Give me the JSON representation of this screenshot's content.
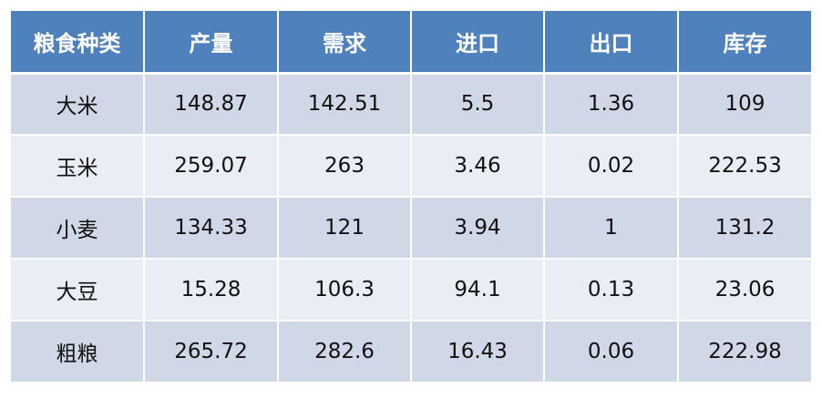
{
  "table": {
    "headers": [
      "粮食种类",
      "产量",
      "需求",
      "进口",
      "出口",
      "库存"
    ],
    "rows": [
      [
        "大米",
        "148.87",
        "142.51",
        "5.5",
        "1.36",
        "109"
      ],
      [
        "玉米",
        "259.07",
        "263",
        "3.46",
        "0.02",
        "222.53"
      ],
      [
        "小麦",
        "134.33",
        "121",
        "3.94",
        "1",
        "131.2"
      ],
      [
        "大豆",
        "15.28",
        "106.3",
        "94.1",
        "0.13",
        "23.06"
      ],
      [
        "粗粮",
        "265.72",
        "282.6",
        "16.43",
        "0.06",
        "222.98"
      ]
    ]
  },
  "colors": {
    "header_bg": "#4f81bd",
    "row_odd_bg": "#d0d8e8",
    "row_even_bg": "#e9edf4",
    "header_text": "#ffffff"
  }
}
